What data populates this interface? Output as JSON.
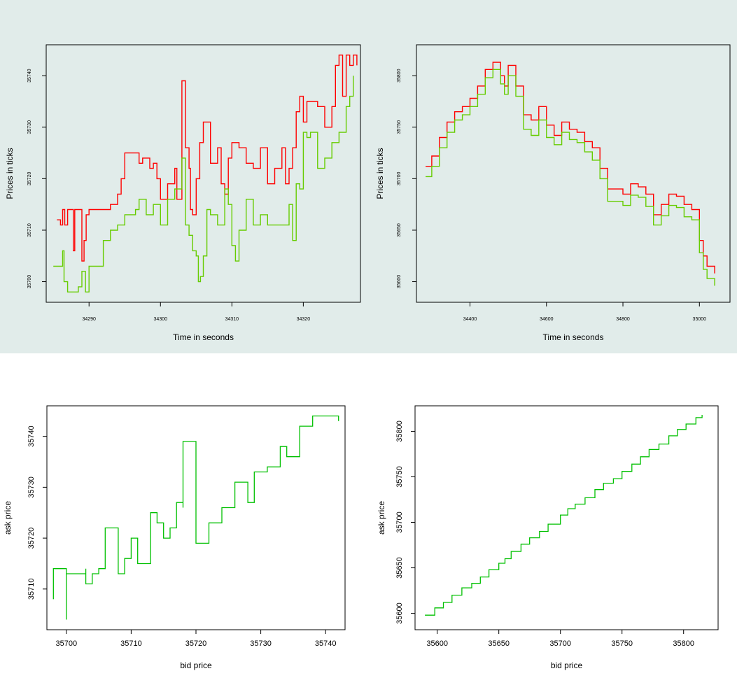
{
  "colors": {
    "band": "#e1ecea",
    "panel": "#e1ecea",
    "ask": "#ff0000",
    "bid": "#66cc00",
    "scatter": "#00c000"
  },
  "chart_data": [
    {
      "type": "line",
      "xlabel": "Time in seconds",
      "ylabel": "Prices in ticks",
      "xlim": [
        34284,
        34328
      ],
      "ylim": [
        35696,
        35746
      ],
      "xticks": [
        34290,
        34300,
        34310,
        34320
      ],
      "yticks": [
        35700,
        35710,
        35720,
        35730,
        35740
      ],
      "grid": false,
      "series": [
        {
          "color": "#ff0000",
          "x": [
            34285.5,
            34286.0,
            34286.3,
            34286.6,
            34287.0,
            34287.5,
            34287.8,
            34288.0,
            34289.0,
            34289.3,
            34289.6,
            34290.0,
            34292.0,
            34293.0,
            34294.0,
            34294.5,
            34295.0,
            34296.0,
            34297.0,
            34297.5,
            34298.5,
            34299.0,
            34299.5,
            34300.0,
            34301.0,
            34302.0,
            34302.3,
            34303.0,
            34303.5,
            34304.0,
            34304.2,
            34304.5,
            34305.0,
            34305.5,
            34306.0,
            34307.0,
            34308.0,
            34308.5,
            34309.0,
            34309.5,
            34310.0,
            34311.0,
            34312.0,
            34313.0,
            34314.0,
            34315.0,
            34316.0,
            34317.0,
            34317.5,
            34318.0,
            34318.5,
            34319.0,
            34319.5,
            34320.0,
            34320.5,
            34321.0,
            34322.0,
            34323.0,
            34324.0,
            34324.5,
            34325.0,
            34325.5,
            34326.0,
            34326.5,
            34327.0,
            34327.5
          ],
          "y": [
            35712,
            35711,
            35714,
            35711,
            35714,
            35714,
            35706,
            35714,
            35704,
            35708,
            35713,
            35714,
            35714,
            35715,
            35717,
            35720,
            35725,
            35725,
            35723,
            35724,
            35722,
            35723,
            35720,
            35716,
            35719,
            35722,
            35716,
            35739,
            35726,
            35722,
            35714,
            35713,
            35720,
            35727,
            35731,
            35723,
            35726,
            35719,
            35717,
            35724,
            35727,
            35726,
            35723,
            35722,
            35726,
            35719,
            35722,
            35726,
            35719,
            35722,
            35726,
            35733,
            35736,
            35731,
            35735,
            35735,
            35734,
            35730,
            35734,
            35742,
            35744,
            35736,
            35744,
            35742,
            35744,
            35742
          ]
        },
        {
          "color": "#66cc00",
          "x": [
            34285.0,
            34285.5,
            34286.0,
            34286.3,
            34286.5,
            34287.0,
            34287.5,
            34288.0,
            34288.5,
            34289.0,
            34289.5,
            34290.0,
            34292.0,
            34293.0,
            34293.5,
            34294.0,
            34295.0,
            34295.5,
            34296.5,
            34297.0,
            34297.5,
            34298.0,
            34299.0,
            34300.0,
            34301.0,
            34302.0,
            34303.0,
            34303.5,
            34304.0,
            34304.5,
            34305.0,
            34305.3,
            34305.6,
            34306.0,
            34306.5,
            34307.0,
            34307.5,
            34308.0,
            34309.0,
            34309.5,
            34310.0,
            34310.5,
            34311.0,
            34312.0,
            34313.0,
            34314.0,
            34315.0,
            34316.0,
            34317.0,
            34318.0,
            34318.5,
            34319.0,
            34319.5,
            34320.0,
            34320.5,
            34321.0,
            34322.0,
            34323.0,
            34324.0,
            34325.0,
            34326.0,
            34326.5,
            34327.0
          ],
          "y": [
            35703,
            35703,
            35703,
            35706,
            35700,
            35698,
            35698,
            35698,
            35699,
            35702,
            35698,
            35703,
            35708,
            35710,
            35710,
            35711,
            35713,
            35713,
            35714,
            35716,
            35716,
            35713,
            35715,
            35711,
            35716,
            35718,
            35724,
            35711,
            35709,
            35706,
            35705,
            35700,
            35701,
            35705,
            35714,
            35713,
            35713,
            35711,
            35718,
            35715,
            35707,
            35704,
            35710,
            35716,
            35711,
            35713,
            35711,
            35711,
            35711,
            35715,
            35708,
            35719,
            35718,
            35729,
            35728,
            35729,
            35722,
            35724,
            35727,
            35729,
            35734,
            35736,
            35740
          ]
        }
      ]
    },
    {
      "type": "line",
      "xlabel": "Time in seconds",
      "ylabel": "Prices in ticks",
      "xlim": [
        34260,
        35080
      ],
      "ylim": [
        35580,
        35830
      ],
      "xticks": [
        34400,
        34600,
        34800,
        35000
      ],
      "yticks": [
        35600,
        35650,
        35700,
        35750,
        35800
      ],
      "grid": false,
      "series": [
        {
          "color": "#ff0000",
          "x": [
            34284,
            34300,
            34320,
            34340,
            34360,
            34380,
            34400,
            34420,
            34440,
            34460,
            34480,
            34490,
            34500,
            34520,
            34540,
            34560,
            34580,
            34600,
            34620,
            34640,
            34660,
            34680,
            34700,
            34720,
            34740,
            34760,
            34780,
            34800,
            34820,
            34840,
            34860,
            34880,
            34900,
            34920,
            34940,
            34960,
            34980,
            35000,
            35010,
            35020,
            35040
          ],
          "y": [
            35712,
            35722,
            35740,
            35755,
            35765,
            35770,
            35778,
            35790,
            35806,
            35813,
            35800,
            35790,
            35810,
            35790,
            35762,
            35757,
            35770,
            35752,
            35742,
            35755,
            35748,
            35745,
            35736,
            35730,
            35710,
            35690,
            35690,
            35685,
            35695,
            35692,
            35685,
            35665,
            35675,
            35685,
            35683,
            35675,
            35670,
            35640,
            35625,
            35615,
            35608
          ]
        },
        {
          "color": "#66cc00",
          "x": [
            34284,
            34300,
            34320,
            34340,
            34360,
            34380,
            34400,
            34420,
            34440,
            34460,
            34480,
            34490,
            34500,
            34520,
            34540,
            34560,
            34580,
            34600,
            34620,
            34640,
            34660,
            34680,
            34700,
            34720,
            34740,
            34760,
            34780,
            34800,
            34820,
            34840,
            34860,
            34880,
            34900,
            34920,
            34940,
            34960,
            34980,
            35000,
            35010,
            35020,
            35040
          ],
          "y": [
            35702,
            35712,
            35730,
            35745,
            35757,
            35762,
            35770,
            35782,
            35798,
            35806,
            35792,
            35782,
            35800,
            35780,
            35748,
            35742,
            35757,
            35740,
            35733,
            35745,
            35738,
            35735,
            35726,
            35718,
            35700,
            35678,
            35678,
            35674,
            35684,
            35682,
            35673,
            35655,
            35664,
            35674,
            35672,
            35663,
            35660,
            35628,
            35612,
            35603,
            35596
          ]
        }
      ]
    },
    {
      "type": "scatter",
      "xlabel": "bid price",
      "ylabel": "ask price",
      "xlim": [
        35697,
        35743
      ],
      "ylim": [
        35702,
        35746
      ],
      "xticks": [
        35700,
        35710,
        35720,
        35730,
        35740
      ],
      "yticks": [
        35710,
        35720,
        35730,
        35740
      ],
      "grid": false,
      "series": [
        {
          "color": "#00c000",
          "x": [
            35698,
            35698,
            35700,
            35700,
            35703,
            35703,
            35704,
            35705,
            35706,
            35708,
            35709,
            35710,
            35711,
            35713,
            35713,
            35714,
            35715,
            35716,
            35717,
            35718,
            35718,
            35720,
            35722,
            35724,
            35726,
            35728,
            35729,
            35731,
            35733,
            35734,
            35736,
            35738,
            35740,
            35742
          ],
          "y": [
            35708,
            35714,
            35704,
            35713,
            35714,
            35711,
            35713,
            35714,
            35722,
            35713,
            35716,
            35720,
            35715,
            35722,
            35725,
            35723,
            35720,
            35722,
            35727,
            35726,
            35739,
            35719,
            35723,
            35726,
            35731,
            35727,
            35733,
            35734,
            35738,
            35736,
            35742,
            35744,
            35744,
            35743
          ]
        }
      ]
    },
    {
      "type": "scatter",
      "xlabel": "bid price",
      "ylabel": "ask price",
      "xlim": [
        35582,
        35828
      ],
      "ylim": [
        35582,
        35828
      ],
      "xticks": [
        35600,
        35650,
        35700,
        35750,
        35800
      ],
      "yticks": [
        35600,
        35650,
        35700,
        35750,
        35800
      ],
      "grid": false,
      "series": [
        {
          "color": "#00c000",
          "x": [
            35590,
            35598,
            35605,
            35612,
            35620,
            35628,
            35635,
            35642,
            35650,
            35655,
            35660,
            35668,
            35675,
            35683,
            35690,
            35700,
            35706,
            35712,
            35720,
            35728,
            35735,
            35743,
            35750,
            35758,
            35765,
            35772,
            35780,
            35788,
            35795,
            35802,
            35810,
            35815
          ],
          "y": [
            35598,
            35606,
            35612,
            35620,
            35628,
            35633,
            35640,
            35648,
            35655,
            35660,
            35668,
            35676,
            35683,
            35690,
            35698,
            35708,
            35715,
            35720,
            35727,
            35736,
            35743,
            35748,
            35756,
            35764,
            35772,
            35780,
            35786,
            35795,
            35802,
            35808,
            35815,
            35818
          ]
        }
      ]
    }
  ]
}
